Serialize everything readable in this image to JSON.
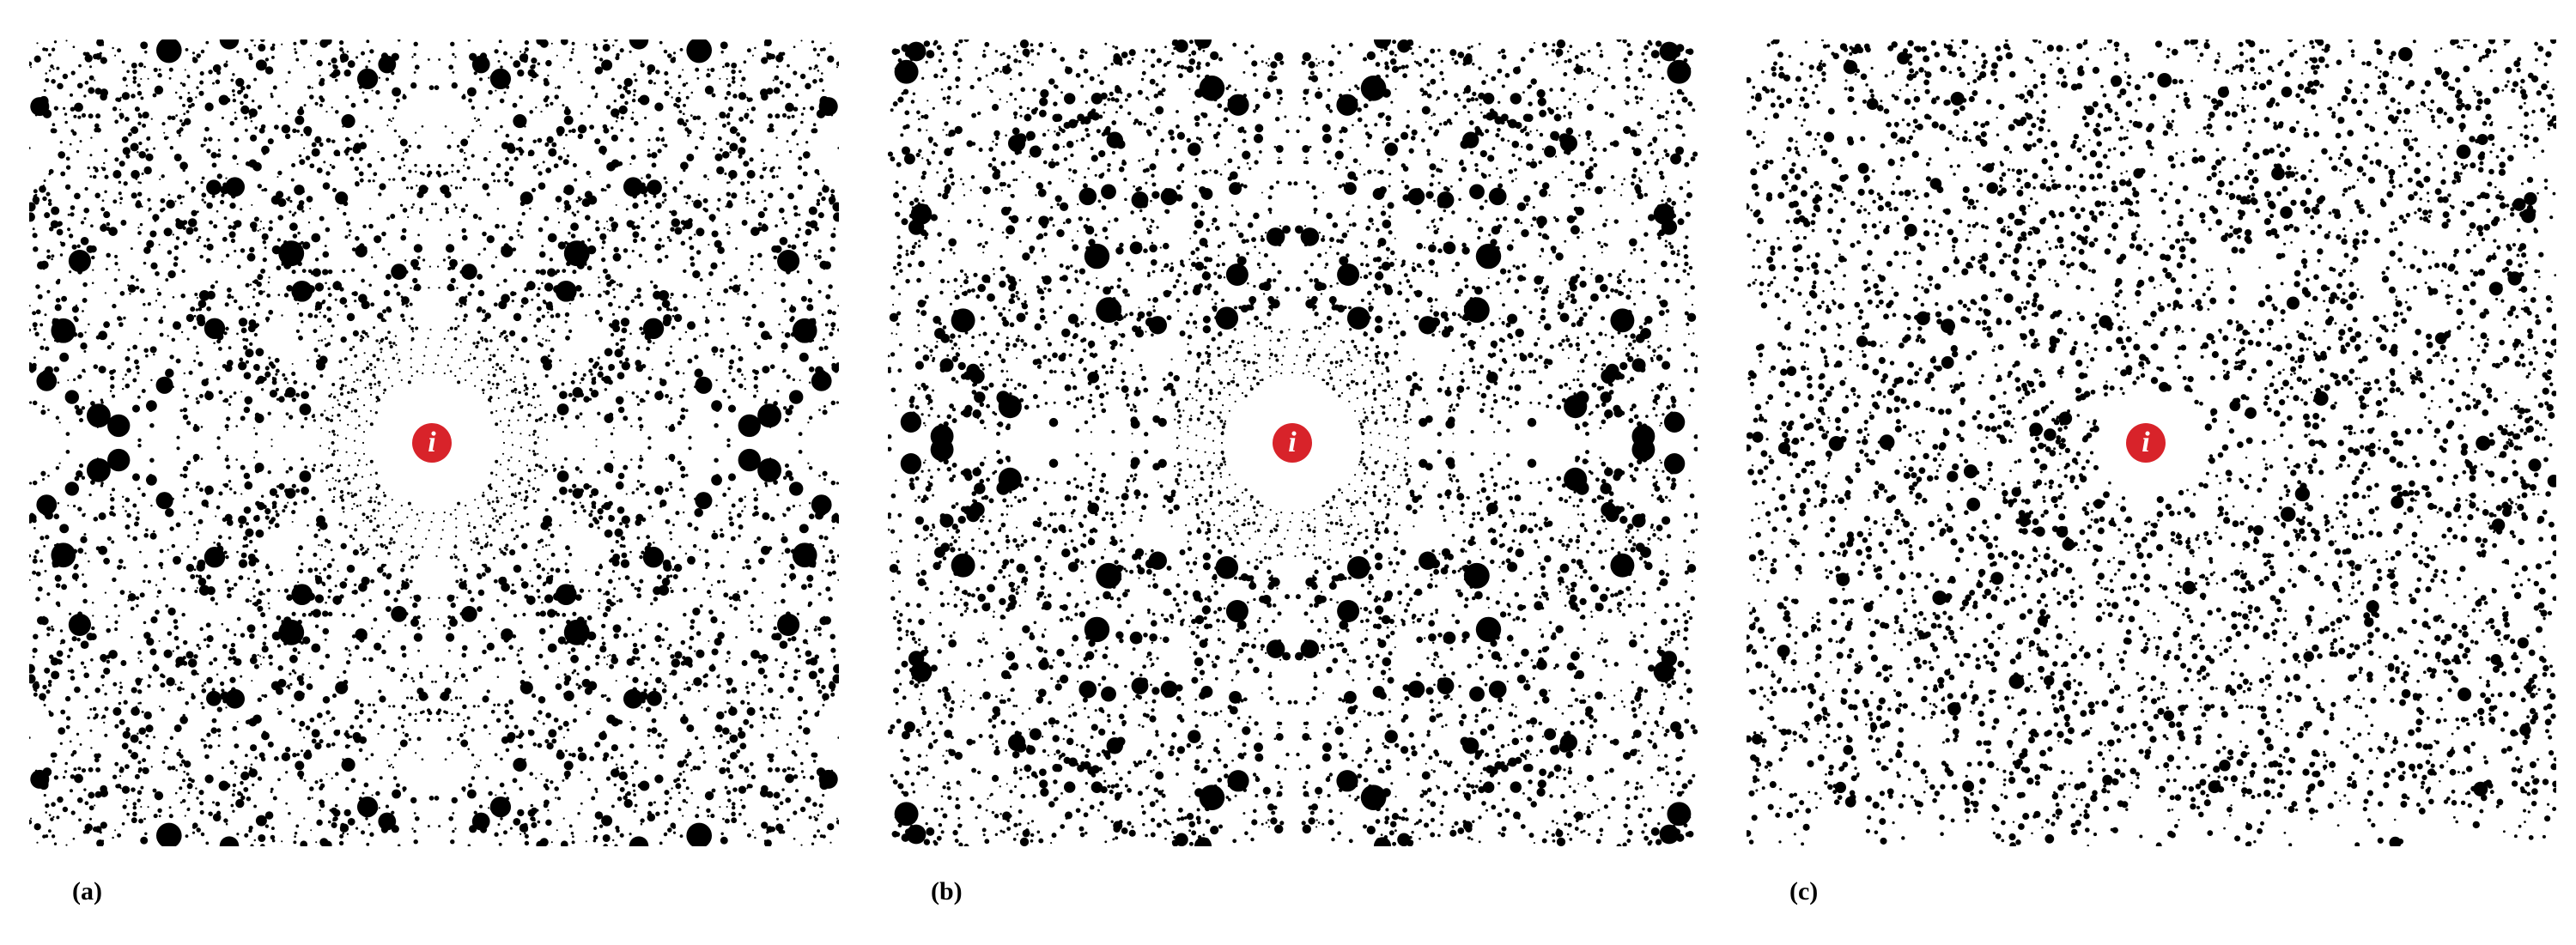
{
  "figure": {
    "panels": [
      {
        "id": "a",
        "caption": "(a)",
        "pattern": "fractal-circle-packing-symmetric",
        "marker_symbol": "i"
      },
      {
        "id": "b",
        "caption": "(b)",
        "pattern": "fractal-circle-packing-symmetric",
        "marker_symbol": "i"
      },
      {
        "id": "c",
        "caption": "(c)",
        "pattern": "dense-dot-field-irregular",
        "marker_symbol": "i"
      }
    ],
    "colors": {
      "background": "#ffffff",
      "dots": "#000000",
      "marker": "#d8232a",
      "marker_text": "#ffffff"
    },
    "icons": {
      "marker": "info-i-icon"
    }
  }
}
